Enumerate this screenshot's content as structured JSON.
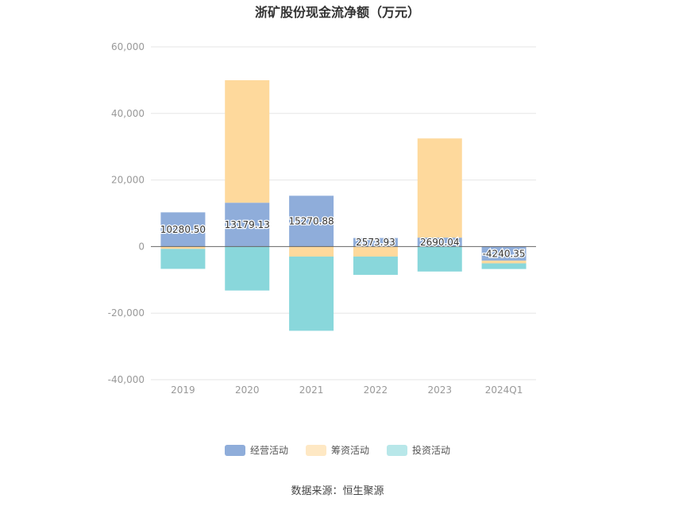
{
  "chart_data": {
    "type": "bar",
    "stacked": true,
    "title": "浙矿股份现金流净额（万元）",
    "categories": [
      "2019",
      "2020",
      "2021",
      "2022",
      "2023",
      "2024Q1"
    ],
    "series": [
      {
        "name": "经营活动",
        "color": "#8fadda",
        "values": [
          10280.5,
          13179.13,
          15270.88,
          2573.93,
          2690.04,
          -4240.35
        ]
      },
      {
        "name": "筹资活动",
        "color": "#fed99c",
        "values": [
          -700,
          36800,
          -3000,
          -3000,
          29800,
          -800
        ]
      },
      {
        "name": "投资活动",
        "color": "#89d7db",
        "values": [
          -6000,
          -13200,
          -22300,
          -5500,
          -7500,
          -1700
        ]
      }
    ],
    "data_labels": [
      "10280.50",
      "13179.13",
      "15270.88",
      "2573.93",
      "2690.04",
      "-4240.35"
    ],
    "y_ticks": [
      "60,000",
      "40,000",
      "20,000",
      "0",
      "-20,000",
      "-40,000"
    ],
    "ylim": [
      -40000,
      60000
    ],
    "grid": true,
    "legend_position": "bottom-center",
    "source": "数据来源：恒生聚源"
  }
}
